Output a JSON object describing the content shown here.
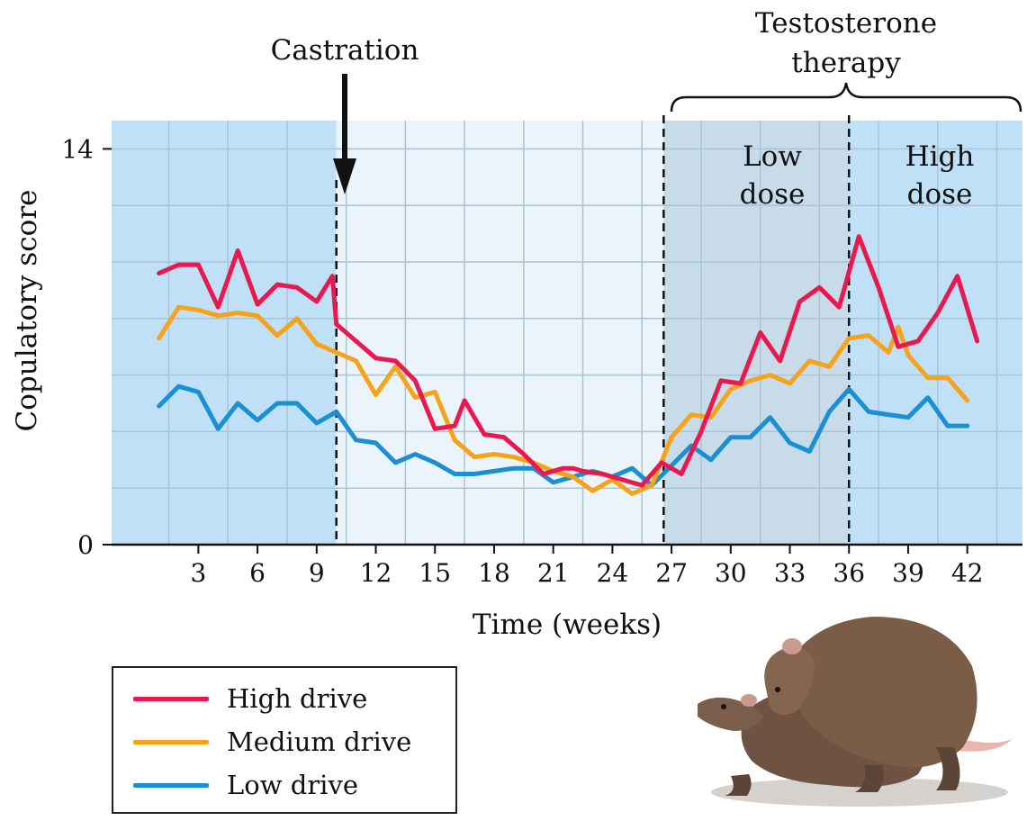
{
  "chart_data": {
    "type": "line",
    "xlabel": "Time (weeks)",
    "ylabel": "Copulatory score",
    "xlim": [
      -1.4,
      44.8
    ],
    "ylim": [
      0,
      15
    ],
    "x_ticks": [
      3,
      6,
      9,
      12,
      15,
      18,
      21,
      24,
      27,
      30,
      33,
      36,
      39,
      42
    ],
    "y_ticks": [
      0,
      14
    ],
    "grid": true,
    "phases": [
      {
        "x_start": -1.4,
        "x_end": 10,
        "color": "#bfe0f7"
      },
      {
        "x_start": 10,
        "x_end": 26.6,
        "color": "#ebf4fa"
      },
      {
        "x_start": 26.6,
        "x_end": 36,
        "color": "#c7dce8"
      },
      {
        "x_start": 36,
        "x_end": 44.8,
        "color": "#bfe0f7"
      }
    ],
    "annotations": {
      "castration": {
        "text": "Castration",
        "x": 10
      },
      "therapy": {
        "line1": "Testosterone",
        "line2": "therapy",
        "x_start": 26.6,
        "x_end": 44.8
      },
      "low_dose": {
        "line1": "Low",
        "line2": "dose"
      },
      "high_dose": {
        "line1": "High",
        "line2": "dose"
      }
    },
    "series": [
      {
        "name": "High drive",
        "color": "#e8194e",
        "x": [
          1,
          2,
          3,
          4,
          5,
          6,
          7,
          8,
          9,
          9.8,
          10,
          12,
          13,
          14,
          15,
          16,
          16.5,
          17.5,
          18.5,
          19.5,
          20.5,
          21.5,
          22,
          22.5,
          23.5,
          24.5,
          25.5,
          26.5,
          27.5,
          28.5,
          29.5,
          30.5,
          31.5,
          32.5,
          33.5,
          34.5,
          35.5,
          36.5,
          37.5,
          38.5,
          39.5,
          40.5,
          41.5,
          42.5
        ],
        "y": [
          9.6,
          9.9,
          9.9,
          8.4,
          10.4,
          8.5,
          9.2,
          9.1,
          8.6,
          9.5,
          7.8,
          6.6,
          6.5,
          5.8,
          4.1,
          4.2,
          5.1,
          3.9,
          3.8,
          3.2,
          2.5,
          2.7,
          2.7,
          2.6,
          2.5,
          2.3,
          2.1,
          2.9,
          2.5,
          4,
          5.8,
          5.7,
          7.5,
          6.5,
          8.6,
          9.1,
          8.4,
          10.9,
          9.1,
          7,
          7.2,
          8.2,
          9.5,
          7.2
        ]
      },
      {
        "name": "Medium drive",
        "color": "#f7a21b",
        "x": [
          1,
          2,
          3,
          4,
          5,
          6,
          7,
          8,
          9,
          10,
          11,
          12,
          13,
          14,
          15,
          16,
          17,
          18,
          19,
          20,
          21,
          22,
          23,
          24,
          25,
          26,
          27,
          28,
          29,
          30,
          31,
          32,
          33,
          34,
          35,
          36,
          37,
          38,
          38.5,
          39,
          40,
          41,
          42
        ],
        "y": [
          7.3,
          8.4,
          8.3,
          8.1,
          8.2,
          8.1,
          7.4,
          8,
          7.1,
          6.8,
          6.5,
          5.3,
          6.3,
          5.2,
          5.4,
          3.7,
          3.1,
          3.2,
          3.1,
          2.9,
          2.6,
          2.4,
          1.9,
          2.3,
          1.8,
          2.1,
          3.8,
          4.6,
          4.5,
          5.5,
          5.8,
          6,
          5.7,
          6.5,
          6.3,
          7.3,
          7.4,
          6.8,
          7.7,
          6.7,
          5.9,
          5.9,
          5.1
        ]
      },
      {
        "name": "Low drive",
        "color": "#1b8fd4",
        "x": [
          1,
          2,
          3,
          4,
          5,
          6,
          7,
          8,
          9,
          10,
          11,
          12,
          13,
          14,
          15,
          16,
          17,
          18,
          19,
          20,
          21,
          22,
          23,
          24,
          25,
          26,
          27,
          28,
          29,
          30,
          31,
          32,
          33,
          34,
          35,
          36,
          37,
          38,
          39,
          40,
          41,
          42
        ],
        "y": [
          4.9,
          5.6,
          5.4,
          4.1,
          5,
          4.4,
          5,
          5,
          4.3,
          4.7,
          3.7,
          3.6,
          2.9,
          3.2,
          2.9,
          2.5,
          2.5,
          2.6,
          2.7,
          2.7,
          2.2,
          2.4,
          2.6,
          2.4,
          2.7,
          2.1,
          2.8,
          3.5,
          3,
          3.8,
          3.8,
          4.5,
          3.6,
          3.3,
          4.7,
          5.5,
          4.7,
          4.6,
          4.5,
          5.2,
          4.2,
          4.2
        ]
      }
    ]
  }
}
